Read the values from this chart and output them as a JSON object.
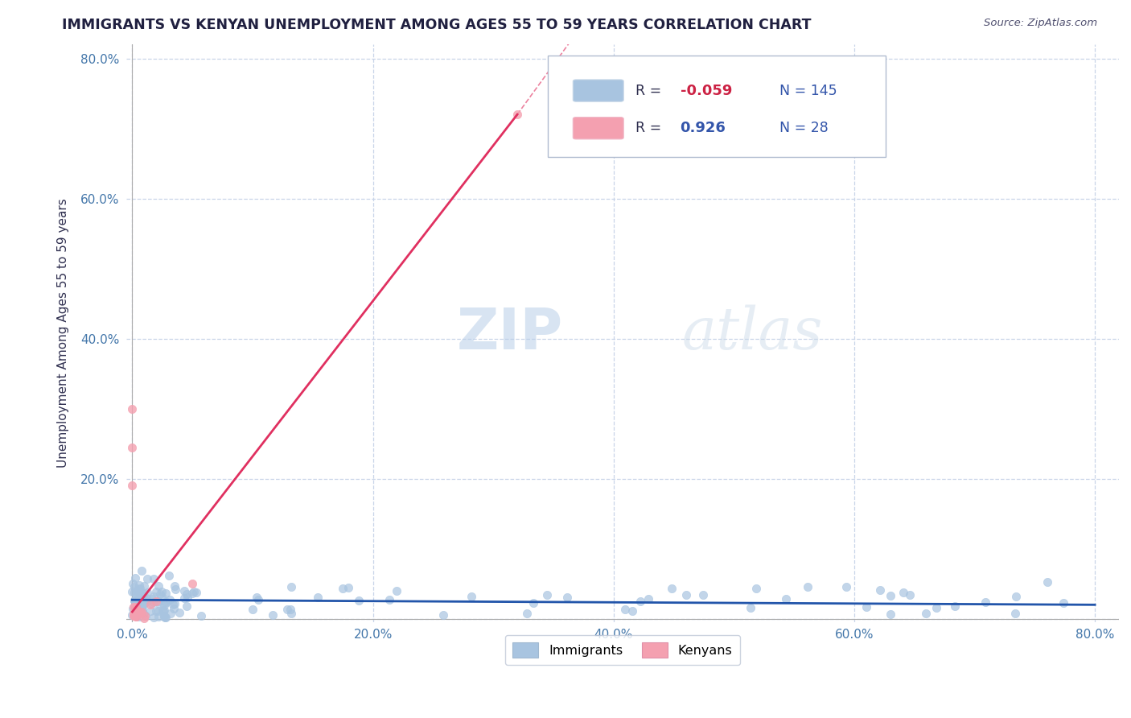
{
  "title": "IMMIGRANTS VS KENYAN UNEMPLOYMENT AMONG AGES 55 TO 59 YEARS CORRELATION CHART",
  "source": "Source: ZipAtlas.com",
  "ylabel": "Unemployment Among Ages 55 to 59 years",
  "xlim": [
    -0.005,
    0.82
  ],
  "ylim": [
    -0.005,
    0.82
  ],
  "xtick_labels": [
    "0.0%",
    "20.0%",
    "40.0%",
    "60.0%",
    "80.0%"
  ],
  "xtick_vals": [
    0.0,
    0.2,
    0.4,
    0.6,
    0.8
  ],
  "ytick_labels": [
    "",
    "20.0%",
    "40.0%",
    "60.0%",
    "80.0%"
  ],
  "ytick_vals": [
    0.0,
    0.2,
    0.4,
    0.6,
    0.8
  ],
  "immigrants_color": "#a8c4e0",
  "kenyans_color": "#f4a0b0",
  "immigrants_line_color": "#2255aa",
  "kenyans_line_color": "#e03060",
  "R_immigrants": -0.059,
  "N_immigrants": 145,
  "R_kenyans": 0.926,
  "N_kenyans": 28,
  "background_color": "#ffffff",
  "grid_color": "#c8d4e8"
}
